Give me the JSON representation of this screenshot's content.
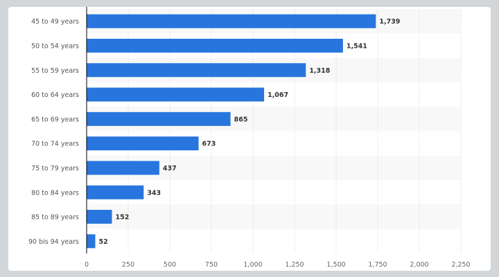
{
  "chart_data": {
    "type": "bar",
    "orientation": "horizontal",
    "categories": [
      "45 to 49 years",
      "50 to 54 years",
      "55 to 59 years",
      "60 to 64 years",
      "65 to 69 years",
      "70 to 74 years",
      "75 to 79 years",
      "80 to 84 years",
      "85 to 89 years",
      "90 bis 94 years"
    ],
    "values": [
      1739,
      1541,
      1318,
      1067,
      865,
      673,
      437,
      343,
      152,
      52
    ],
    "value_labels": [
      "1,739",
      "1,541",
      "1,318",
      "1,067",
      "865",
      "673",
      "437",
      "343",
      "152",
      "52"
    ],
    "xticks": [
      0,
      250,
      500,
      750,
      1000,
      1250,
      1500,
      1750,
      2000,
      2250
    ],
    "xtick_labels": [
      "0",
      "250",
      "500",
      "750",
      "1,000",
      "1,250",
      "1,500",
      "1,750",
      "2,000",
      "2,250"
    ],
    "xlim": [
      0,
      2250
    ],
    "grid": "vertical dotted",
    "bar_color": "#2876dd",
    "stripe_color": "#f8f8f8"
  }
}
